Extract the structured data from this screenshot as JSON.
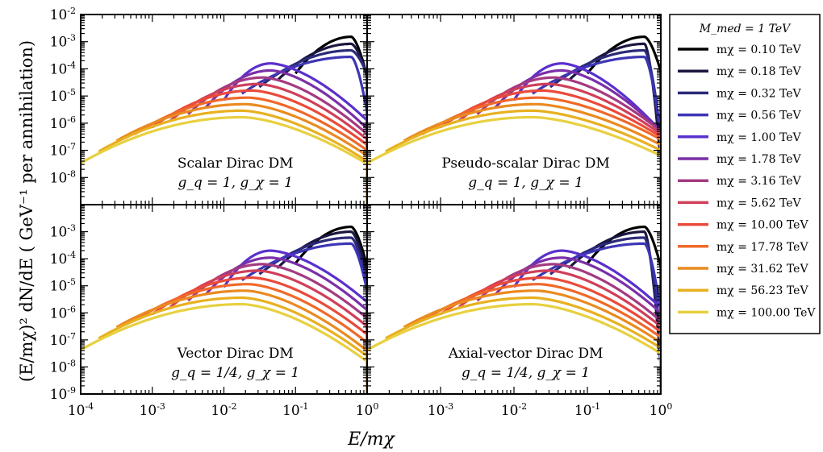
{
  "chart_data": {
    "type": "line",
    "x_label": "E/mχ",
    "y_label": "(E/mχ)² dN/dE ( GeV⁻¹ per annihilation)",
    "x_scale": "log",
    "y_scale": "log",
    "xlim": [
      0.0001,
      1
    ],
    "x_tick_labels": [
      "10^-4",
      "10^-3",
      "10^-2",
      "10^-1",
      "10^0"
    ],
    "legend": {
      "title": "M_med = 1 TeV",
      "placement": "right-outside",
      "entries": [
        {
          "label": "mχ = 0.10 TeV",
          "mass": 0.1,
          "color": "#000000"
        },
        {
          "label": "mχ = 0.18 TeV",
          "mass": 0.18,
          "color": "#1b1740"
        },
        {
          "label": "mχ = 0.32 TeV",
          "mass": 0.32,
          "color": "#2b2a78"
        },
        {
          "label": "mχ = 0.56 TeV",
          "mass": 0.56,
          "color": "#3c35b5"
        },
        {
          "label": "mχ = 1.00 TeV",
          "mass": 1.0,
          "color": "#5a30cc"
        },
        {
          "label": "mχ = 1.78 TeV",
          "mass": 1.78,
          "color": "#7b2fa8"
        },
        {
          "label": "mχ = 3.16 TeV",
          "mass": 3.16,
          "color": "#a43a82"
        },
        {
          "label": "mχ = 5.62 TeV",
          "mass": 5.62,
          "color": "#d03f5a"
        },
        {
          "label": "mχ = 10.00 TeV",
          "mass": 10.0,
          "color": "#ea4a3a"
        },
        {
          "label": "mχ = 17.78 TeV",
          "mass": 17.78,
          "color": "#f0682a"
        },
        {
          "label": "mχ = 31.62 TeV",
          "mass": 31.62,
          "color": "#ea8a20"
        },
        {
          "label": "mχ = 56.23 TeV",
          "mass": 56.23,
          "color": "#e8b020"
        },
        {
          "label": "mχ = 100.00 TeV",
          "mass": 100.0,
          "color": "#e8d040"
        }
      ]
    },
    "panels": [
      {
        "title": "Scalar Dirac DM",
        "couplings": "g_q = 1, g_χ = 1",
        "ylim": [
          1e-09,
          0.01
        ],
        "y_tick_labels": [
          "10^-2",
          "10^-3",
          "10^-4",
          "10^-5",
          "10^-6",
          "10^-7",
          "10^-8"
        ],
        "peak_exp": [
          -2.82,
          -3.08,
          -3.32,
          -3.56,
          -3.8,
          -4.06,
          -4.32,
          -4.56,
          -4.8,
          -5.06,
          -5.3,
          -5.54,
          -5.78
        ],
        "endpoint_exp": [
          -4.3,
          -4.25,
          -4.2,
          -5.6,
          -5.9,
          -6.2,
          -6.4,
          -6.6,
          -6.8,
          -7.0,
          -7.2,
          -7.4,
          -7.5
        ],
        "peak_frac": [
          1,
          1,
          0.6,
          0.6,
          0.045,
          0.045,
          0.035,
          0.03,
          0.025,
          0.022,
          0.02,
          0.018,
          0.018
        ]
      },
      {
        "title": "Pseudo-scalar Dirac DM",
        "couplings": "g_q = 1, g_χ = 1",
        "ylim": [
          1e-09,
          0.01
        ],
        "y_tick_labels": [],
        "peak_exp": [
          -2.82,
          -3.08,
          -3.32,
          -3.56,
          -3.8,
          -4.06,
          -4.32,
          -4.56,
          -4.8,
          -5.06,
          -5.3,
          -5.54,
          -5.78
        ],
        "endpoint_exp": [
          -4.1,
          -7.5,
          -6.5,
          -6.5,
          -6.3,
          -6.3,
          -6.3,
          -6.4,
          -6.5,
          -6.6,
          -6.8,
          -7.0,
          -7.2
        ],
        "peak_frac": [
          1,
          1,
          0.6,
          0.6,
          0.045,
          0.045,
          0.035,
          0.03,
          0.025,
          0.022,
          0.02,
          0.018,
          0.018
        ]
      },
      {
        "title": "Vector Dirac DM",
        "couplings": "g_q = 1/4, g_χ = 1",
        "ylim": [
          1e-09,
          0.01
        ],
        "y_tick_labels": [
          "10^-3",
          "10^-4",
          "10^-5",
          "10^-6",
          "10^-7",
          "10^-8",
          "10^-9"
        ],
        "peak_exp": [
          -2.82,
          -3.0,
          -3.22,
          -3.44,
          -3.7,
          -3.96,
          -4.2,
          -4.44,
          -4.7,
          -4.94,
          -5.18,
          -5.44,
          -5.68
        ],
        "endpoint_exp": [
          -4.3,
          -4.6,
          -4.9,
          -5.2,
          -5.6,
          -5.9,
          -6.2,
          -6.5,
          -6.8,
          -7.1,
          -7.4,
          -7.6,
          -7.8
        ],
        "peak_frac": [
          1,
          1,
          0.6,
          0.6,
          0.045,
          0.045,
          0.035,
          0.03,
          0.025,
          0.022,
          0.02,
          0.018,
          0.018
        ]
      },
      {
        "title": "Axial-vector Dirac DM",
        "couplings": "g_q = 1/4, g_χ = 1",
        "ylim": [
          1e-09,
          0.01
        ],
        "y_tick_labels": [],
        "peak_exp": [
          -2.82,
          -3.0,
          -3.22,
          -3.44,
          -3.7,
          -3.96,
          -4.2,
          -4.44,
          -4.7,
          -4.94,
          -5.18,
          -5.44,
          -5.68
        ],
        "endpoint_exp": [
          -4.3,
          -8.0,
          -7.2,
          -6.0,
          -5.8,
          -6.0,
          -6.3,
          -6.5,
          -6.7,
          -6.9,
          -7.1,
          -7.3,
          -7.5
        ],
        "peak_frac": [
          1,
          1,
          0.6,
          0.6,
          0.045,
          0.045,
          0.035,
          0.03,
          0.025,
          0.022,
          0.02,
          0.018,
          0.018
        ]
      }
    ]
  },
  "labels": {
    "ylabel_text": "(E/mχ)² dN/dE ( GeV⁻¹ per annihilation)",
    "xlabel_text": "E/mχ"
  }
}
